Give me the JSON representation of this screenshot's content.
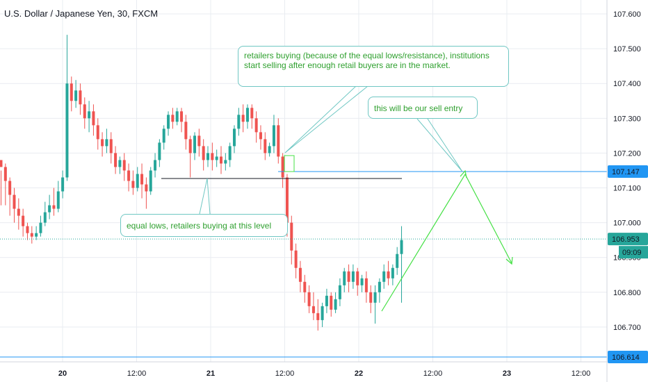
{
  "chart_data": {
    "type": "candlestick",
    "title": "U.S. Dollar / Japanese Yen, 30, FXCM",
    "x_tick_labels": [
      "20",
      "12:00",
      "21",
      "12:00",
      "22",
      "12:00",
      "23",
      "12:00"
    ],
    "y_ticks": [
      107.6,
      107.5,
      107.4,
      107.3,
      107.2,
      107.1,
      107.0,
      106.9,
      106.8,
      106.7
    ],
    "y_tick_labels": [
      "107.600",
      "107.500",
      "107.400",
      "107.300",
      "107.200",
      "107.100",
      "107.000",
      "106.900",
      "106.800",
      "106.700"
    ],
    "ylim": [
      106.6,
      107.64
    ],
    "price_labels": {
      "resistance": {
        "value": 107.147,
        "label": "107.147",
        "color": "#2196f3"
      },
      "current": {
        "value": 106.953,
        "label": "106.953",
        "color": "#26a69a"
      },
      "countdown": {
        "label": "09:09",
        "color": "#26a69a"
      },
      "support": {
        "value": 106.614,
        "label": "106.614",
        "color": "#2196f3"
      }
    },
    "candles": [
      [
        107.18,
        107.15,
        107.16,
        107.05
      ],
      [
        107.16,
        107.17,
        107.12,
        107.05
      ],
      [
        107.12,
        107.13,
        107.08,
        107.02
      ],
      [
        107.08,
        107.1,
        107.04,
        107.0
      ],
      [
        107.04,
        107.07,
        107.02,
        106.98
      ],
      [
        107.02,
        107.04,
        106.99,
        106.96
      ],
      [
        106.99,
        107.0,
        106.97,
        106.95
      ],
      [
        106.97,
        106.99,
        106.96,
        106.94
      ],
      [
        106.96,
        106.99,
        106.97,
        106.95
      ],
      [
        106.97,
        107.02,
        107.0,
        106.96
      ],
      [
        107.0,
        107.06,
        107.03,
        106.99
      ],
      [
        107.03,
        107.08,
        107.05,
        107.01
      ],
      [
        107.05,
        107.1,
        107.04,
        107.02
      ],
      [
        107.04,
        107.12,
        107.09,
        107.03
      ],
      [
        107.09,
        107.15,
        107.13,
        107.07
      ],
      [
        107.13,
        107.54,
        107.4,
        107.12
      ],
      [
        107.4,
        107.42,
        107.35,
        107.32
      ],
      [
        107.35,
        107.41,
        107.38,
        107.33
      ],
      [
        107.38,
        107.4,
        107.34,
        107.31
      ],
      [
        107.34,
        107.36,
        107.3,
        107.27
      ],
      [
        107.3,
        107.35,
        107.32,
        107.26
      ],
      [
        107.32,
        107.34,
        107.28,
        107.25
      ],
      [
        107.28,
        107.3,
        107.24,
        107.21
      ],
      [
        107.24,
        107.26,
        107.22,
        107.19
      ],
      [
        107.22,
        107.27,
        107.24,
        107.2
      ],
      [
        107.24,
        107.26,
        107.2,
        107.17
      ],
      [
        107.2,
        107.22,
        107.16,
        107.14
      ],
      [
        107.16,
        107.19,
        107.18,
        107.14
      ],
      [
        107.18,
        107.2,
        107.15,
        107.12
      ],
      [
        107.15,
        107.17,
        107.12,
        107.09
      ],
      [
        107.12,
        107.15,
        107.1,
        107.08
      ],
      [
        107.1,
        107.16,
        107.14,
        107.09
      ],
      [
        107.14,
        107.17,
        107.11,
        107.07
      ],
      [
        107.11,
        107.13,
        107.09,
        107.04
      ],
      [
        107.09,
        107.16,
        107.15,
        107.08
      ],
      [
        107.15,
        107.2,
        107.18,
        107.13
      ],
      [
        107.18,
        107.24,
        107.23,
        107.16
      ],
      [
        107.23,
        107.28,
        107.27,
        107.21
      ],
      [
        107.27,
        107.32,
        107.31,
        107.25
      ],
      [
        107.31,
        107.33,
        107.29,
        107.27
      ],
      [
        107.29,
        107.33,
        107.32,
        107.28
      ],
      [
        107.32,
        107.33,
        107.29,
        107.26
      ],
      [
        107.29,
        107.31,
        107.24,
        107.21
      ],
      [
        107.24,
        107.25,
        107.2,
        107.13
      ],
      [
        107.2,
        107.26,
        107.25,
        107.18
      ],
      [
        107.25,
        107.27,
        107.22,
        107.19
      ],
      [
        107.22,
        107.24,
        107.18,
        107.15
      ],
      [
        107.18,
        107.22,
        107.2,
        107.16
      ],
      [
        107.2,
        107.23,
        107.18,
        107.15
      ],
      [
        107.18,
        107.21,
        107.19,
        107.16
      ],
      [
        107.19,
        107.22,
        107.17,
        107.14
      ],
      [
        107.17,
        107.2,
        107.18,
        107.15
      ],
      [
        107.18,
        107.23,
        107.22,
        107.16
      ],
      [
        107.22,
        107.28,
        107.27,
        107.2
      ],
      [
        107.27,
        107.33,
        107.31,
        107.25
      ],
      [
        107.31,
        107.34,
        107.29,
        107.26
      ],
      [
        107.29,
        107.34,
        107.33,
        107.27
      ],
      [
        107.33,
        107.34,
        107.3,
        107.27
      ],
      [
        107.3,
        107.32,
        107.26,
        107.23
      ],
      [
        107.26,
        107.28,
        107.24,
        107.21
      ],
      [
        107.24,
        107.26,
        107.2,
        107.18
      ],
      [
        107.2,
        107.23,
        107.22,
        107.19
      ],
      [
        107.22,
        107.31,
        107.28,
        107.2
      ],
      [
        107.28,
        107.3,
        107.19,
        107.17
      ],
      [
        107.19,
        107.2,
        107.13,
        107.1
      ],
      [
        107.13,
        107.14,
        107.0,
        106.96
      ],
      [
        107.0,
        107.02,
        106.92,
        106.88
      ],
      [
        106.92,
        106.94,
        106.87,
        106.84
      ],
      [
        106.87,
        106.89,
        106.83,
        106.8
      ],
      [
        106.83,
        106.85,
        106.8,
        106.77
      ],
      [
        106.8,
        106.82,
        106.76,
        106.74
      ],
      [
        106.76,
        106.8,
        106.74,
        106.72
      ],
      [
        106.74,
        106.78,
        106.72,
        106.69
      ],
      [
        106.72,
        106.77,
        106.76,
        106.7
      ],
      [
        106.76,
        106.81,
        106.79,
        106.74
      ],
      [
        106.79,
        106.8,
        106.75,
        106.73
      ],
      [
        106.75,
        106.8,
        106.78,
        106.74
      ],
      [
        106.78,
        106.84,
        106.82,
        106.76
      ],
      [
        106.82,
        106.87,
        106.86,
        106.8
      ],
      [
        106.86,
        106.88,
        106.83,
        106.8
      ],
      [
        106.83,
        106.88,
        106.86,
        106.81
      ],
      [
        106.86,
        106.87,
        106.82,
        106.79
      ],
      [
        106.82,
        106.85,
        106.84,
        106.8
      ],
      [
        106.84,
        106.86,
        106.8,
        106.77
      ],
      [
        106.8,
        106.82,
        106.77,
        106.74
      ],
      [
        106.77,
        106.82,
        106.8,
        106.71
      ],
      [
        106.8,
        106.84,
        106.83,
        106.77
      ],
      [
        106.83,
        106.88,
        106.86,
        106.81
      ],
      [
        106.86,
        106.89,
        106.84,
        106.82
      ],
      [
        106.84,
        106.88,
        106.87,
        106.82
      ],
      [
        106.87,
        106.93,
        106.91,
        106.85
      ],
      [
        106.91,
        106.99,
        106.95,
        106.77
      ]
    ]
  },
  "annotations": {
    "retailers_buying": "retailers buying (because of the equal lows/resistance), institutions start selling after enough retail buyers are in the market.",
    "sell_entry": "this will be our sell entry",
    "equal_lows": "equal lows, retailers buying at this level"
  },
  "colors": {
    "up": "#26a69a",
    "down": "#ef5350",
    "grid": "#e9ecf1",
    "note_border": "#6fc7c3",
    "note_text": "#2fa02f",
    "arrow": "#44e044"
  }
}
